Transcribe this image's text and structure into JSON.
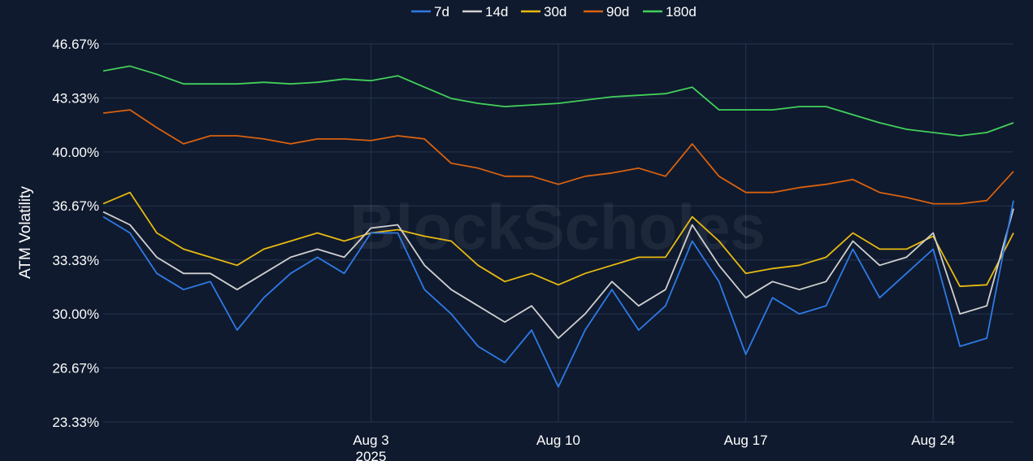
{
  "watermark": "BlockScholes",
  "chart_data": {
    "type": "line",
    "ylabel": "ATM Volatility",
    "xlabel": "",
    "ylim": [
      23.33,
      46.67
    ],
    "yticks": [
      "46.67%",
      "43.33%",
      "40.00%",
      "36.67%",
      "33.33%",
      "30.00%",
      "26.67%",
      "23.33%"
    ],
    "ytick_values": [
      46.67,
      43.33,
      40.0,
      36.67,
      33.33,
      30.0,
      26.67,
      23.33
    ],
    "xlim": [
      "2025-07-24",
      "2025-08-27"
    ],
    "xticks": [
      {
        "date": "2025-08-03",
        "label": "Aug 3",
        "sublabel": "2025"
      },
      {
        "date": "2025-08-10",
        "label": "Aug 10",
        "sublabel": ""
      },
      {
        "date": "2025-08-17",
        "label": "Aug 17",
        "sublabel": ""
      },
      {
        "date": "2025-08-24",
        "label": "Aug 24",
        "sublabel": ""
      }
    ],
    "grid": true,
    "legend_position": "top-center",
    "x": [
      "2025-07-24",
      "2025-07-25",
      "2025-07-26",
      "2025-07-27",
      "2025-07-28",
      "2025-07-29",
      "2025-07-30",
      "2025-07-31",
      "2025-08-01",
      "2025-08-02",
      "2025-08-03",
      "2025-08-04",
      "2025-08-05",
      "2025-08-06",
      "2025-08-07",
      "2025-08-08",
      "2025-08-09",
      "2025-08-10",
      "2025-08-11",
      "2025-08-12",
      "2025-08-13",
      "2025-08-14",
      "2025-08-15",
      "2025-08-16",
      "2025-08-17",
      "2025-08-18",
      "2025-08-19",
      "2025-08-20",
      "2025-08-21",
      "2025-08-22",
      "2025-08-23",
      "2025-08-24",
      "2025-08-25",
      "2025-08-26",
      "2025-08-27"
    ],
    "series": [
      {
        "name": "7d",
        "color": "#2e7ae6",
        "values": [
          36.0,
          35.0,
          32.5,
          31.5,
          32.0,
          29.0,
          31.0,
          32.5,
          33.5,
          32.5,
          35.0,
          35.0,
          31.5,
          30.0,
          28.0,
          27.0,
          29.0,
          25.5,
          29.0,
          31.5,
          29.0,
          30.5,
          34.5,
          32.0,
          27.5,
          31.0,
          30.0,
          30.5,
          34.0,
          31.0,
          32.5,
          34.0,
          28.0,
          28.5,
          37.0
        ]
      },
      {
        "name": "14d",
        "color": "#d0d0d0",
        "values": [
          36.3,
          35.5,
          33.5,
          32.5,
          32.5,
          31.5,
          32.5,
          33.5,
          34.0,
          33.5,
          35.3,
          35.5,
          33.0,
          31.5,
          30.5,
          29.5,
          30.5,
          28.5,
          30.0,
          32.0,
          30.5,
          31.5,
          35.5,
          33.0,
          31.0,
          32.0,
          31.5,
          32.0,
          34.5,
          33.0,
          33.5,
          35.0,
          30.0,
          30.5,
          36.5
        ]
      },
      {
        "name": "30d",
        "color": "#e8b910",
        "values": [
          36.8,
          37.5,
          35.0,
          34.0,
          33.5,
          33.0,
          34.0,
          34.5,
          35.0,
          34.5,
          35.0,
          35.2,
          34.8,
          34.5,
          33.0,
          32.0,
          32.5,
          31.8,
          32.5,
          33.0,
          33.5,
          33.5,
          36.0,
          34.5,
          32.5,
          32.8,
          33.0,
          33.5,
          35.0,
          34.0,
          34.0,
          34.8,
          31.7,
          31.8,
          35.0
        ]
      },
      {
        "name": "90d",
        "color": "#d9610f",
        "values": [
          42.4,
          42.6,
          41.5,
          40.5,
          41.0,
          41.0,
          40.8,
          40.5,
          40.8,
          40.8,
          40.7,
          41.0,
          40.8,
          39.3,
          39.0,
          38.5,
          38.5,
          38.0,
          38.5,
          38.7,
          39.0,
          38.5,
          40.5,
          38.5,
          37.5,
          37.5,
          37.8,
          38.0,
          38.3,
          37.5,
          37.2,
          36.8,
          36.8,
          37.0,
          38.8
        ]
      },
      {
        "name": "180d",
        "color": "#42d05a",
        "values": [
          45.0,
          45.3,
          44.8,
          44.2,
          44.2,
          44.2,
          44.3,
          44.2,
          44.3,
          44.5,
          44.4,
          44.7,
          44.0,
          43.3,
          43.0,
          42.8,
          42.9,
          43.0,
          43.2,
          43.4,
          43.5,
          43.6,
          44.0,
          42.6,
          42.6,
          42.6,
          42.8,
          42.8,
          42.3,
          41.8,
          41.4,
          41.2,
          41.0,
          41.2,
          41.8
        ]
      }
    ]
  }
}
